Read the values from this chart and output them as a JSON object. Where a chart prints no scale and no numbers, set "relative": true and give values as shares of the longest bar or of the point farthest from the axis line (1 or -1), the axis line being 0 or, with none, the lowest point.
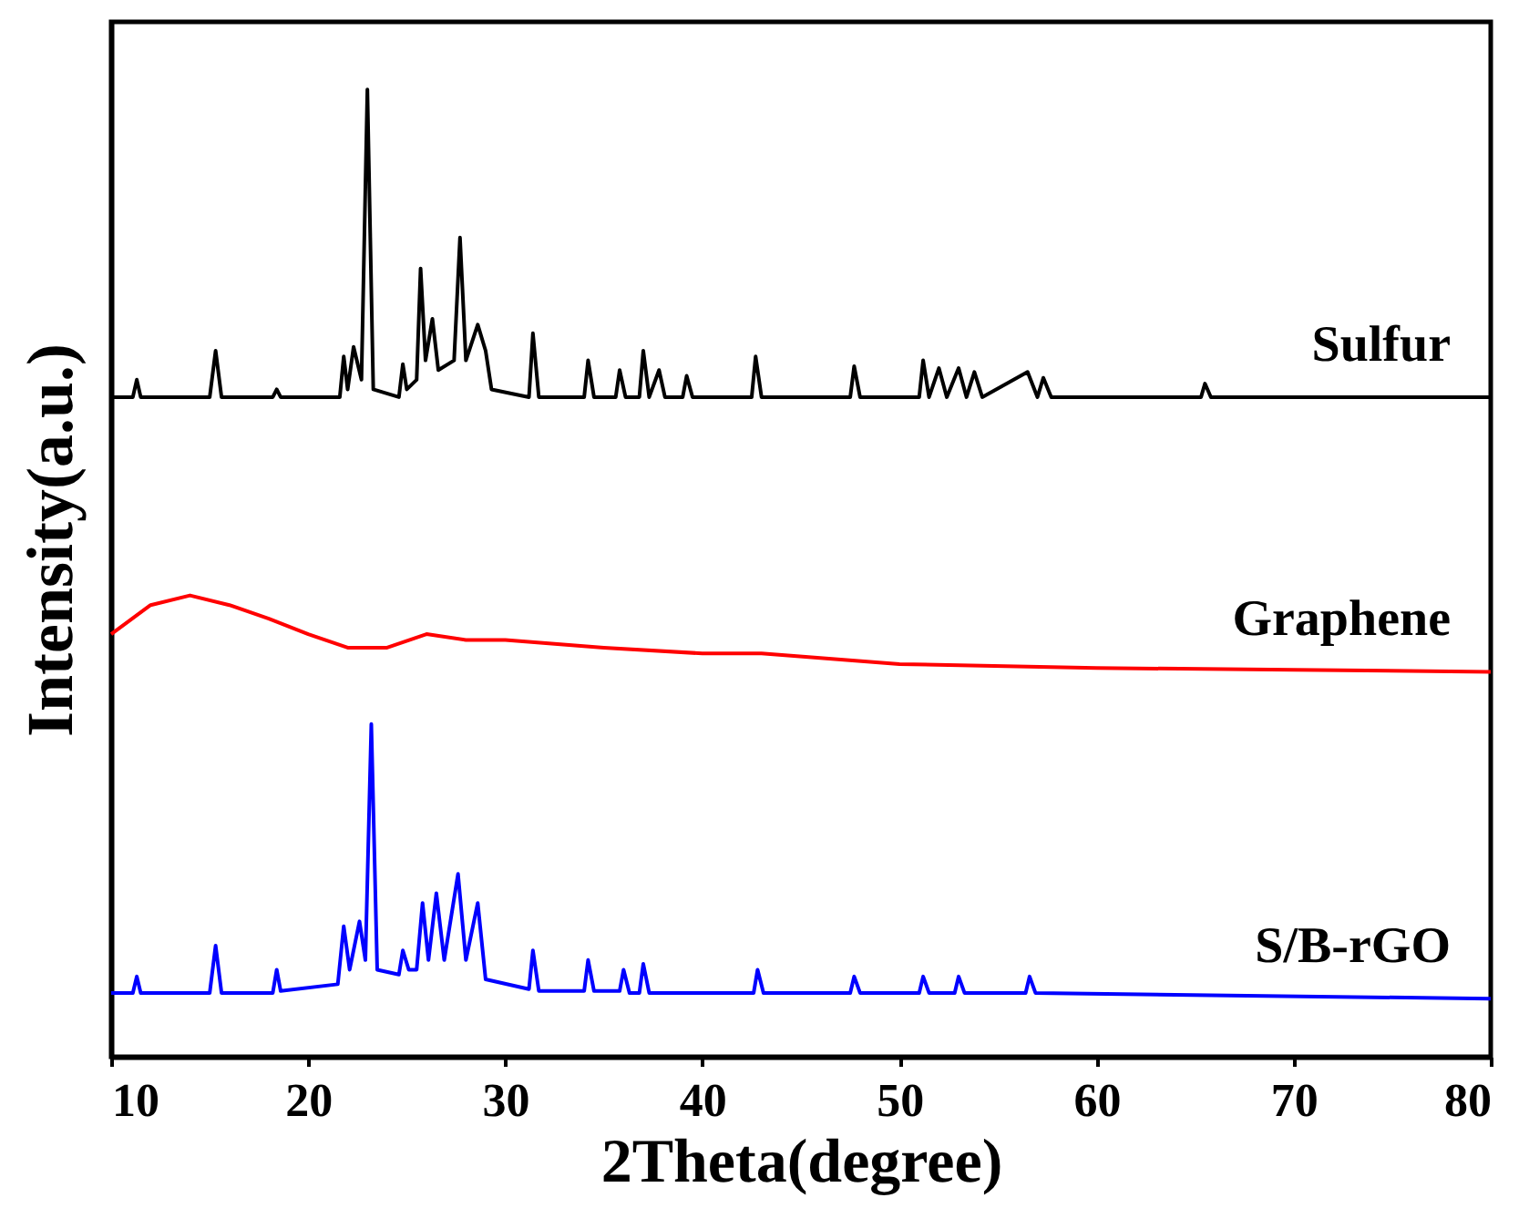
{
  "chart_data": {
    "type": "line",
    "relative": true,
    "xlabel": "2Theta(degree)",
    "ylabel": "Intensity(a.u.)",
    "xlim": [
      10,
      80
    ],
    "xticks": [
      10,
      20,
      30,
      40,
      50,
      60,
      70,
      80
    ],
    "tick_labels": "x",
    "legend": false,
    "grid": false,
    "series": [
      {
        "name": "Sulfur",
        "color": "#000000",
        "x": [
          10,
          11.1,
          11.3,
          11.5,
          15.0,
          15.3,
          15.6,
          18.2,
          18.4,
          18.6,
          21.6,
          21.8,
          22.0,
          22.3,
          22.7,
          23.0,
          23.3,
          24.6,
          24.8,
          25.0,
          25.5,
          25.7,
          25.95,
          26.3,
          26.6,
          27.4,
          27.7,
          28.0,
          28.6,
          29.0,
          29.3,
          31.2,
          31.4,
          31.7,
          34.0,
          34.2,
          34.5,
          35.6,
          35.8,
          36.1,
          36.8,
          37.0,
          37.3,
          37.8,
          38.1,
          39.0,
          39.2,
          39.5,
          42.5,
          42.7,
          43.0,
          47.5,
          47.7,
          48.0,
          51.0,
          51.2,
          51.5,
          52.0,
          52.4,
          53.0,
          53.4,
          53.8,
          54.2,
          56.5,
          57.0,
          57.3,
          57.7,
          65.3,
          65.5,
          65.8,
          80
        ],
        "values": [
          0.682,
          0.682,
          0.7,
          0.682,
          0.682,
          0.73,
          0.682,
          0.682,
          0.69,
          0.682,
          0.682,
          0.724,
          0.69,
          0.734,
          0.7,
          1.0,
          0.69,
          0.682,
          0.716,
          0.69,
          0.7,
          0.815,
          0.72,
          0.763,
          0.71,
          0.72,
          0.847,
          0.72,
          0.757,
          0.73,
          0.69,
          0.682,
          0.748,
          0.682,
          0.682,
          0.72,
          0.682,
          0.682,
          0.71,
          0.682,
          0.682,
          0.73,
          0.682,
          0.71,
          0.682,
          0.682,
          0.704,
          0.682,
          0.682,
          0.724,
          0.682,
          0.682,
          0.714,
          0.682,
          0.682,
          0.72,
          0.682,
          0.712,
          0.682,
          0.712,
          0.682,
          0.708,
          0.682,
          0.708,
          0.682,
          0.702,
          0.682,
          0.682,
          0.696,
          0.682,
          0.682
        ]
      },
      {
        "name": "Graphene",
        "color": "#ff0000",
        "x": [
          10,
          12,
          14,
          16,
          18,
          20,
          22,
          24,
          26,
          28,
          30,
          35,
          40,
          43,
          50,
          60,
          70,
          80
        ],
        "values": [
          0.437,
          0.467,
          0.477,
          0.467,
          0.453,
          0.437,
          0.423,
          0.423,
          0.437,
          0.431,
          0.431,
          0.423,
          0.417,
          0.417,
          0.406,
          0.402,
          0.4,
          0.398
        ]
      },
      {
        "name": "S/B-rGO",
        "color": "#0000ff",
        "x": [
          10,
          11.1,
          11.3,
          11.5,
          15.0,
          15.3,
          15.6,
          18.2,
          18.4,
          18.6,
          21.5,
          21.8,
          22.1,
          22.6,
          22.9,
          23.2,
          23.5,
          24.6,
          24.8,
          25.1,
          25.5,
          25.8,
          26.1,
          26.5,
          26.9,
          27.6,
          28.0,
          28.6,
          29.0,
          31.2,
          31.4,
          31.7,
          34.0,
          34.2,
          34.5,
          35.8,
          36.0,
          36.3,
          36.8,
          37.0,
          37.3,
          42.6,
          42.8,
          43.1,
          47.5,
          47.7,
          48.0,
          51.0,
          51.2,
          51.5,
          52.8,
          53.0,
          53.3,
          56.4,
          56.6,
          56.9,
          80
        ],
        "values": [
          0.066,
          0.066,
          0.083,
          0.066,
          0.066,
          0.115,
          0.066,
          0.066,
          0.09,
          0.068,
          0.075,
          0.135,
          0.09,
          0.14,
          0.1,
          0.344,
          0.09,
          0.085,
          0.11,
          0.09,
          0.09,
          0.159,
          0.1,
          0.169,
          0.1,
          0.189,
          0.1,
          0.159,
          0.08,
          0.07,
          0.11,
          0.068,
          0.068,
          0.1,
          0.068,
          0.068,
          0.09,
          0.066,
          0.066,
          0.096,
          0.066,
          0.066,
          0.09,
          0.066,
          0.066,
          0.083,
          0.066,
          0.066,
          0.083,
          0.066,
          0.066,
          0.083,
          0.066,
          0.066,
          0.083,
          0.066,
          0.06
        ]
      }
    ]
  }
}
